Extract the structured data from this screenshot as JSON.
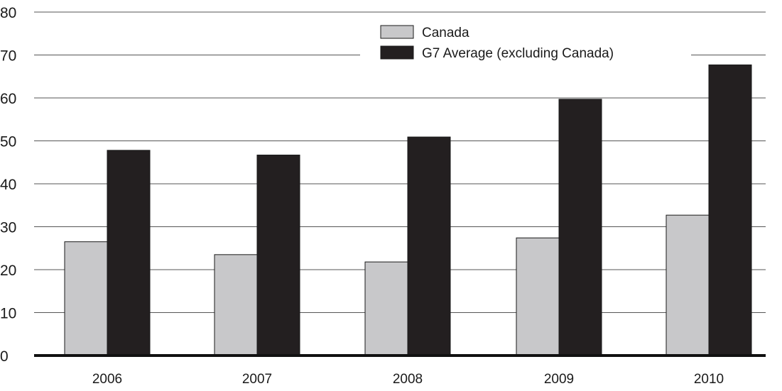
{
  "chart_data": {
    "type": "bar",
    "title": "",
    "xlabel": "",
    "ylabel": "",
    "categories": [
      "2006",
      "2007",
      "2008",
      "2009",
      "2010"
    ],
    "series": [
      {
        "name": "Canada",
        "values": [
          26.5,
          23.5,
          21.8,
          27.4,
          32.7
        ],
        "color": "#c8c8ca"
      },
      {
        "name": "G7 Average (excluding Canada)",
        "values": [
          47.8,
          46.7,
          50.9,
          59.7,
          67.7
        ],
        "color": "#231f20"
      }
    ],
    "ylim": [
      0,
      80
    ],
    "yticks": [
      0,
      10,
      20,
      30,
      40,
      50,
      60,
      70,
      80
    ],
    "grid": true,
    "legend_position": "top-center"
  }
}
